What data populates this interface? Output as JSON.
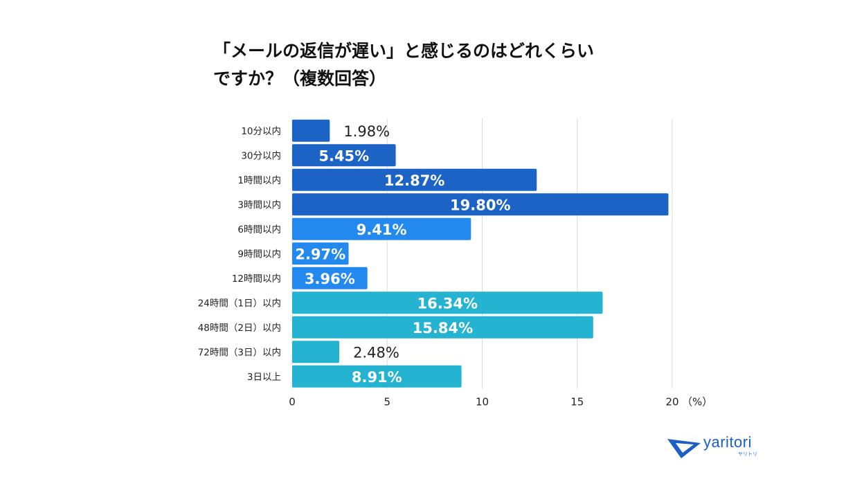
{
  "title_lines": [
    "「メールの返信が遅い」と感じるのはどれくらい",
    "ですか？（複数回答）"
  ],
  "logo": {
    "text": "yaritori",
    "sub": "ヤリトリ"
  },
  "chart_data": {
    "type": "bar",
    "orientation": "horizontal",
    "categories": [
      "10分以内",
      "30分以内",
      "1時間以内",
      "3時間以内",
      "6時間以内",
      "9時間以内",
      "12時間以内",
      "24時間（1日）以内",
      "48時間（2日）以内",
      "72時間（3日）以内",
      "3日以上"
    ],
    "values": [
      1.98,
      5.45,
      12.87,
      19.8,
      9.41,
      2.97,
      3.96,
      16.34,
      15.84,
      2.48,
      8.91
    ],
    "value_labels": [
      "1.98%",
      "5.45%",
      "12.87%",
      "19.80%",
      "9.41%",
      "2.97%",
      "3.96%",
      "16.34%",
      "15.84%",
      "2.48%",
      "8.91%"
    ],
    "bar_colors": [
      "#1c63c6",
      "#1c63c6",
      "#1c63c6",
      "#1c63c6",
      "#2389ee",
      "#2389ee",
      "#2389ee",
      "#25b3d2",
      "#25b3d2",
      "#25b3d2",
      "#25b3d2"
    ],
    "xlim": [
      0,
      20
    ],
    "xticks": [
      "0",
      "5",
      "10",
      "15",
      "20"
    ],
    "xunit": "（%）",
    "grid": true
  }
}
